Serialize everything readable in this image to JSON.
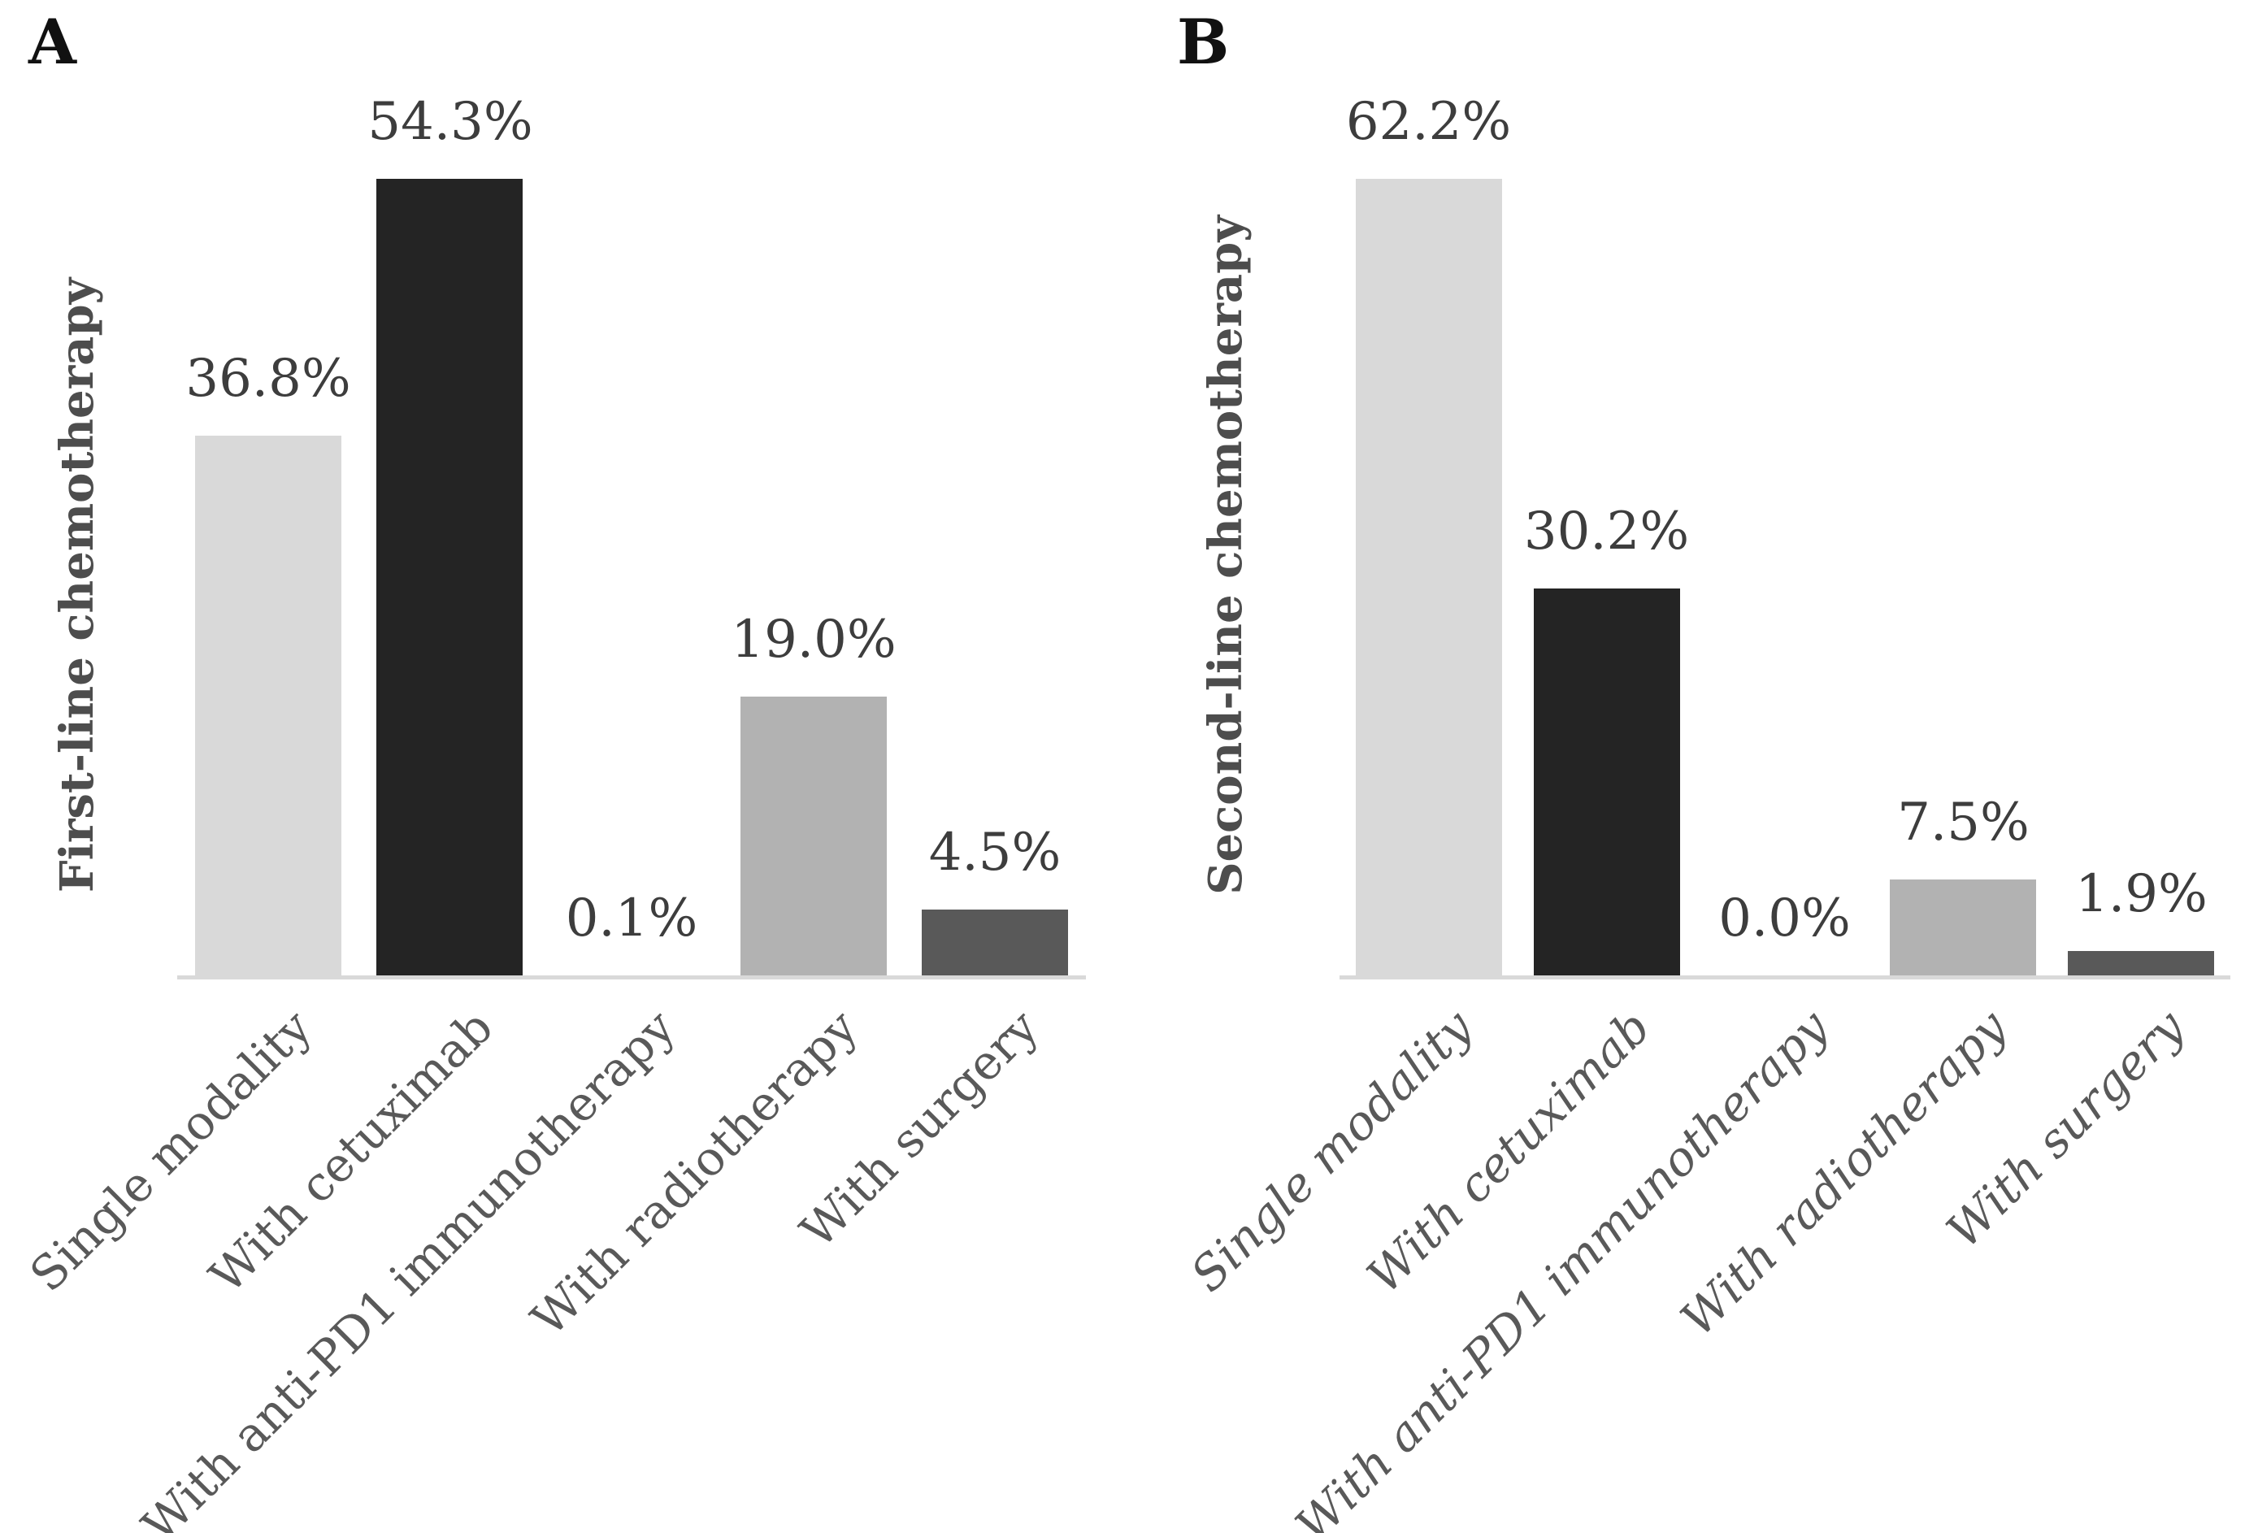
{
  "figure_type": "two-panel bar chart",
  "panels": [
    {
      "letter": "A",
      "y_axis_label": "First-line chemotherapy"
    },
    {
      "letter": "B",
      "y_axis_label": "Second-line chemotherapy"
    }
  ],
  "chart_data": [
    {
      "type": "bar",
      "panel": "A",
      "title": "",
      "xlabel": "",
      "ylabel": "First-line chemotherapy",
      "categories": [
        "Single modality",
        "With cetuximab",
        "With anti-PD1 immunotherapy",
        "With radiotherapy",
        "With surgery"
      ],
      "values": [
        36.8,
        54.3,
        0.1,
        19.0,
        4.5
      ],
      "data_labels": [
        "36.8%",
        "54.3%",
        "0.1%",
        "19.0%",
        "4.5%"
      ],
      "bar_colors": [
        "#d9d9d9",
        "#242424",
        "#7f7f7f",
        "#b2b2b2",
        "#595959"
      ],
      "x_labels_italic": false,
      "ylim": [
        0,
        62
      ],
      "grid": false,
      "legend": "none",
      "axis_line_color": "#d9d9d9",
      "data_label_color": "#3d3d3d",
      "tick_label_color": "#595959"
    },
    {
      "type": "bar",
      "panel": "B",
      "title": "",
      "xlabel": "",
      "ylabel": "Second-line chemotherapy",
      "categories": [
        "Single modality",
        "With cetuximab",
        "With anti-PD1 immunotherapy",
        "With radiotherapy",
        "With surgery"
      ],
      "values": [
        62.2,
        30.2,
        0.0,
        7.5,
        1.9
      ],
      "data_labels": [
        "62.2%",
        "30.2%",
        "0.0%",
        "7.5%",
        "1.9%"
      ],
      "bar_colors": [
        "#d9d9d9",
        "#242424",
        "#7f7f7f",
        "#b2b2b2",
        "#595959"
      ],
      "x_labels_italic": true,
      "ylim": [
        0,
        62
      ],
      "grid": false,
      "legend": "none",
      "axis_line_color": "#d9d9d9",
      "data_label_color": "#3d3d3d",
      "tick_label_color": "#595959"
    }
  ]
}
